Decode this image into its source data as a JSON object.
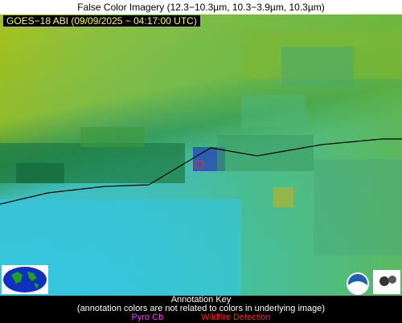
{
  "header": {
    "title": "False Color Imagery (12.3−10.3µm, 10.3−3.9µm, 10.3µm)"
  },
  "image": {
    "label": "GOES−18 ABI (09/09/2025 − 04:17:00 UTC)"
  },
  "annotation_key": {
    "title": "Annotation Key",
    "note": "(annotation colors are not related to colors in underlying image)",
    "items": [
      "Pyro Cb",
      "Wildfire Detection"
    ]
  }
}
